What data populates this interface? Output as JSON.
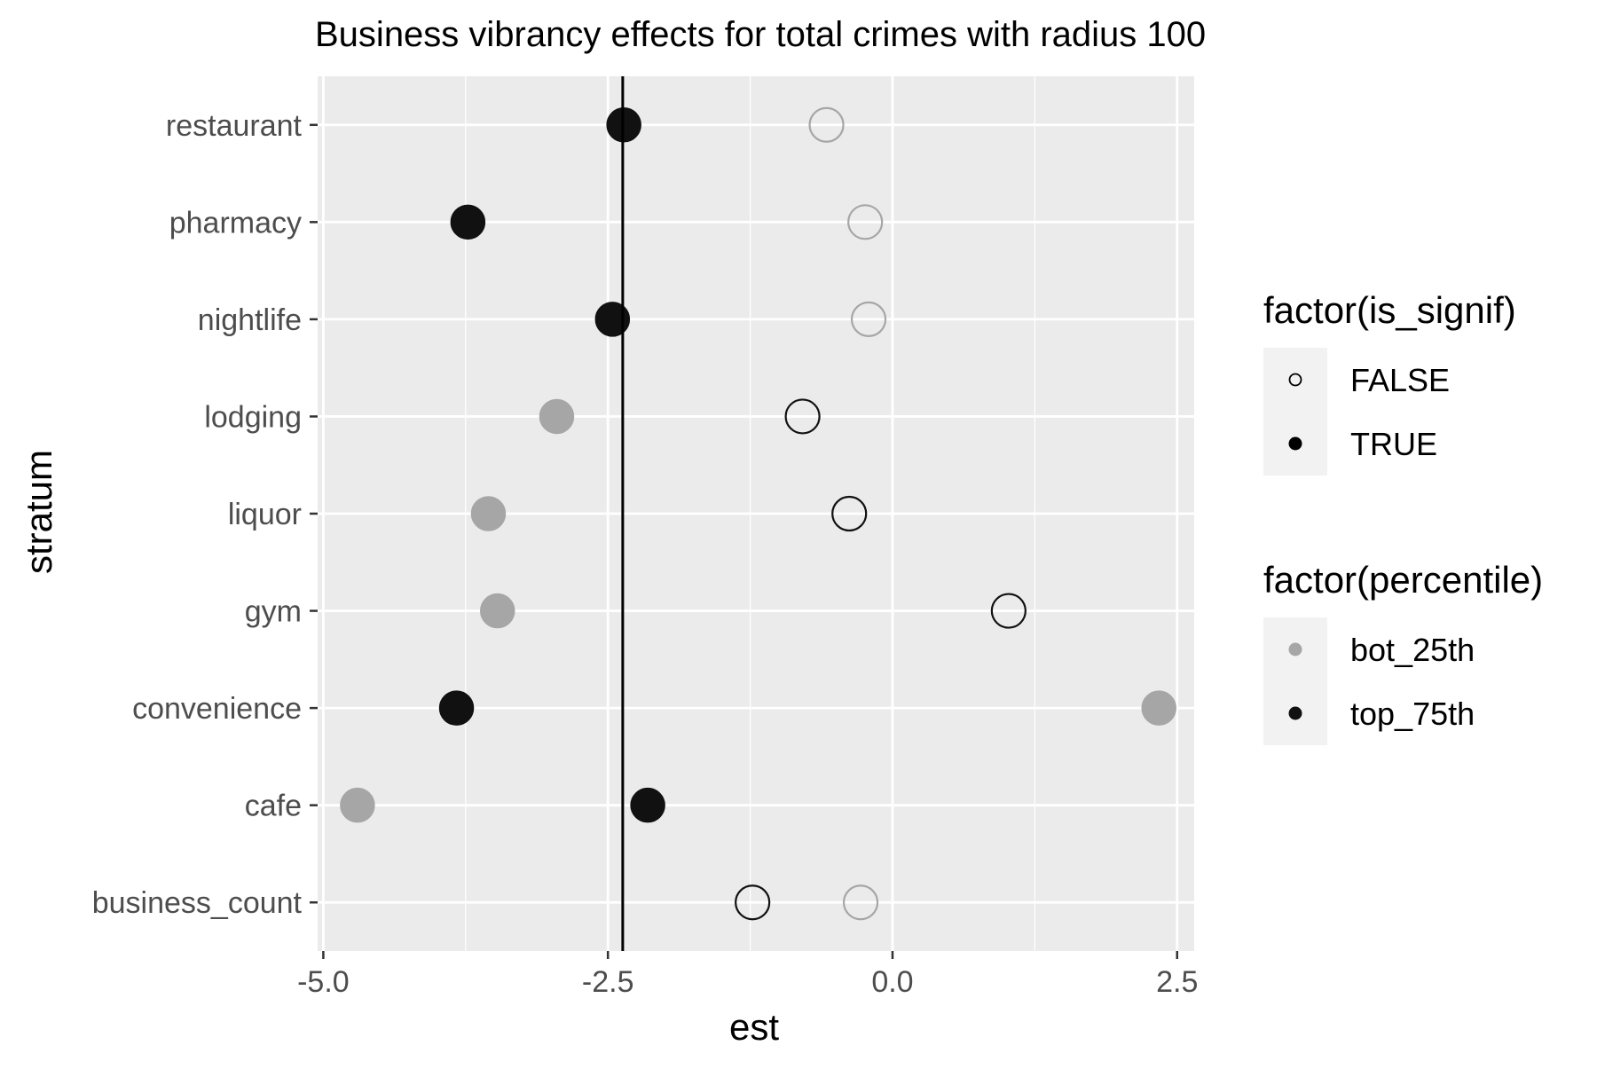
{
  "chart_data": {
    "type": "scatter",
    "title": "Business vibrancy effects for total crimes with radius 100",
    "xlabel": "est",
    "ylabel": "stratum",
    "xlim": [
      -5.05,
      2.65
    ],
    "x_ticks": [
      -5.0,
      -2.5,
      0.0,
      2.5
    ],
    "x_tick_labels": [
      "-5.0",
      "-2.5",
      "0.0",
      "2.5"
    ],
    "categories": [
      "business_count",
      "cafe",
      "convenience",
      "gym",
      "liquor",
      "lodging",
      "nightlife",
      "pharmacy",
      "restaurant"
    ],
    "reference_line_x": -2.37,
    "grid": true,
    "legend_position": "right",
    "colors": {
      "panel_bg": "#ebebeb",
      "grid": "#ffffff",
      "bot_25th": "#a6a6a6",
      "top_75th": "#111111",
      "reference_line": "#000000",
      "legend_key_bg": "#f2f2f2"
    },
    "series": [
      {
        "name": "bot_25th",
        "points": [
          {
            "stratum": "restaurant",
            "est": -0.58,
            "is_signif": false
          },
          {
            "stratum": "pharmacy",
            "est": -0.24,
            "is_signif": false
          },
          {
            "stratum": "nightlife",
            "est": -0.21,
            "is_signif": false
          },
          {
            "stratum": "lodging",
            "est": -2.95,
            "is_signif": true
          },
          {
            "stratum": "liquor",
            "est": -3.55,
            "is_signif": true
          },
          {
            "stratum": "gym",
            "est": -3.47,
            "is_signif": true
          },
          {
            "stratum": "convenience",
            "est": 2.34,
            "is_signif": true
          },
          {
            "stratum": "cafe",
            "est": -4.7,
            "is_signif": true
          },
          {
            "stratum": "business_count",
            "est": -0.28,
            "is_signif": false
          }
        ]
      },
      {
        "name": "top_75th",
        "points": [
          {
            "stratum": "restaurant",
            "est": -2.36,
            "is_signif": true
          },
          {
            "stratum": "pharmacy",
            "est": -3.73,
            "is_signif": true
          },
          {
            "stratum": "nightlife",
            "est": -2.46,
            "is_signif": true
          },
          {
            "stratum": "lodging",
            "est": -0.79,
            "is_signif": false
          },
          {
            "stratum": "liquor",
            "est": -0.38,
            "is_signif": false
          },
          {
            "stratum": "gym",
            "est": 1.02,
            "is_signif": false
          },
          {
            "stratum": "convenience",
            "est": -3.83,
            "is_signif": true
          },
          {
            "stratum": "cafe",
            "est": -2.15,
            "is_signif": true
          },
          {
            "stratum": "business_count",
            "est": -1.23,
            "is_signif": false
          }
        ]
      }
    ],
    "legends": [
      {
        "title": "factor(is_signif)",
        "items": [
          {
            "label": "FALSE",
            "kind": "hollow"
          },
          {
            "label": "TRUE",
            "kind": "filled"
          }
        ]
      },
      {
        "title": "factor(percentile)",
        "items": [
          {
            "label": "bot_25th",
            "kind": "color",
            "color": "#a6a6a6"
          },
          {
            "label": "top_75th",
            "kind": "color",
            "color": "#111111"
          }
        ]
      }
    ]
  }
}
